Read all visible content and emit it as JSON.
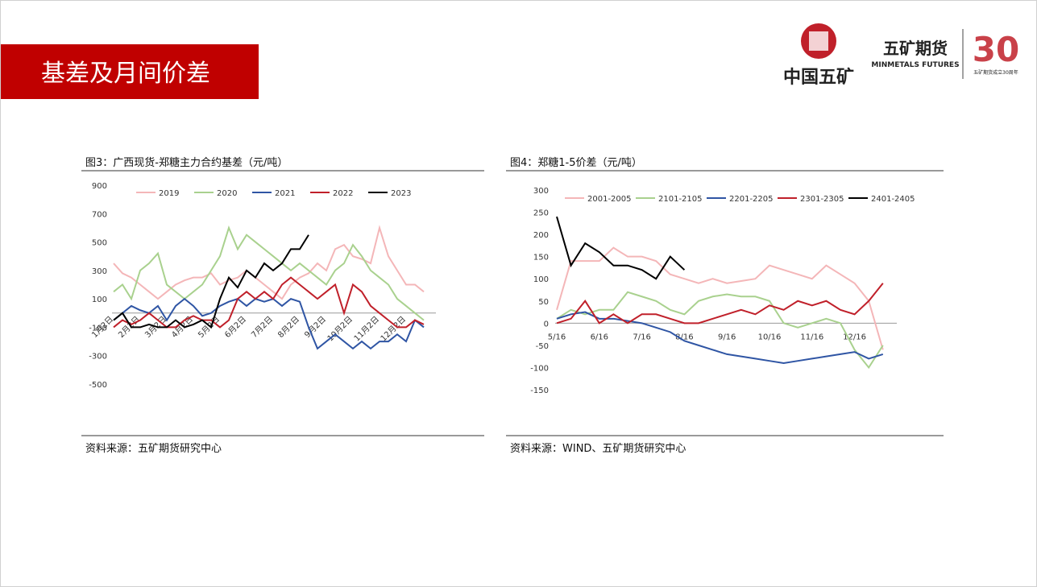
{
  "header": {
    "title": "基差及月间价差",
    "logo_left": "中国五矿",
    "logo_right": "五矿期货",
    "logo_right_en": "MINMETALS FUTURES",
    "anniversary": "五矿期货成立30周年"
  },
  "sources": [
    "资料来源：五矿期货研究中心",
    "资料来源：WIND、五矿期货研究中心"
  ],
  "chart_data": [
    {
      "type": "line",
      "title": "图3：广西现货-郑糖主力合约基差（元/吨）",
      "categories": [
        "1月2日",
        null,
        null,
        "2月2日",
        null,
        null,
        "3月2日",
        null,
        null,
        "4月2日",
        null,
        null,
        "5月2日",
        null,
        null,
        "6月2日",
        null,
        null,
        "7月2日",
        null,
        null,
        "8月2日",
        null,
        null,
        "9月2日",
        null,
        null,
        "10月2日",
        null,
        null,
        "11月2日",
        null,
        null,
        "12月2日",
        null,
        null
      ],
      "ylim": [
        -500,
        900
      ],
      "yticks": [
        -500,
        -300,
        -100,
        100,
        300,
        500,
        700,
        900
      ],
      "legend": "top",
      "series": [
        {
          "name": "2019",
          "color": "#f4b6b8",
          "values": [
            350,
            280,
            250,
            200,
            150,
            100,
            150,
            200,
            230,
            250,
            250,
            280,
            200,
            230,
            250,
            300,
            250,
            200,
            150,
            100,
            200,
            250,
            280,
            350,
            300,
            450,
            480,
            400,
            380,
            350,
            600,
            400,
            300,
            200,
            200,
            150
          ]
        },
        {
          "name": "2020",
          "color": "#a9d18e",
          "values": [
            150,
            200,
            100,
            300,
            350,
            420,
            200,
            150,
            100,
            150,
            200,
            300,
            400,
            600,
            450,
            550,
            500,
            450,
            400,
            350,
            300,
            350,
            300,
            250,
            200,
            300,
            350,
            480,
            400,
            300,
            250,
            200,
            100,
            50,
            0,
            -50
          ]
        },
        {
          "name": "2021",
          "color": "#2f55a4",
          "values": [
            -50,
            0,
            50,
            20,
            0,
            50,
            -50,
            50,
            100,
            50,
            -20,
            0,
            50,
            80,
            100,
            50,
            100,
            80,
            100,
            50,
            100,
            80,
            -100,
            -250,
            -200,
            -150,
            -200,
            -250,
            -200,
            -250,
            -200,
            -200,
            -150,
            -200,
            -50,
            -100
          ]
        },
        {
          "name": "2022",
          "color": "#c0202a",
          "values": [
            -100,
            -50,
            -80,
            -50,
            0,
            -50,
            -100,
            -100,
            -50,
            -20,
            -50,
            -50,
            -100,
            -50,
            100,
            150,
            100,
            150,
            100,
            200,
            250,
            200,
            150,
            100,
            150,
            200,
            0,
            200,
            150,
            50,
            0,
            -50,
            -100,
            -100,
            -50,
            -80
          ]
        },
        {
          "name": "2023",
          "color": "#000000",
          "values": [
            -50,
            0,
            -100,
            -100,
            -80,
            -100,
            -100,
            -50,
            -100,
            -80,
            -50,
            -100,
            100,
            250,
            180,
            300,
            250,
            350,
            300,
            350,
            450,
            450,
            550,
            null,
            null,
            null,
            null,
            null,
            null,
            null,
            null,
            null,
            null,
            null,
            null,
            null
          ]
        }
      ]
    },
    {
      "type": "line",
      "title": "图4：郑糖1-5价差（元/吨）",
      "categories": [
        "5/16",
        null,
        null,
        "6/16",
        null,
        null,
        "7/16",
        null,
        null,
        "8/16",
        null,
        null,
        "9/16",
        null,
        null,
        "10/16",
        null,
        null,
        "11/16",
        null,
        null,
        "12/16",
        null,
        null
      ],
      "ylim": [
        -150,
        300
      ],
      "yticks": [
        -150,
        -100,
        -50,
        0,
        50,
        100,
        150,
        200,
        250,
        300
      ],
      "legend": "top",
      "series": [
        {
          "name": "2001-2005",
          "color": "#f4b6b8",
          "values": [
            30,
            140,
            140,
            140,
            170,
            150,
            150,
            140,
            110,
            100,
            90,
            100,
            90,
            95,
            100,
            130,
            120,
            110,
            100,
            130,
            110,
            90,
            50,
            -60
          ]
        },
        {
          "name": "2101-2105",
          "color": "#a9d18e",
          "values": [
            10,
            30,
            20,
            30,
            30,
            70,
            60,
            50,
            30,
            20,
            50,
            60,
            65,
            60,
            60,
            50,
            0,
            -10,
            0,
            10,
            0,
            -60,
            -100,
            -50
          ]
        },
        {
          "name": "2201-2205",
          "color": "#2f55a4",
          "values": [
            10,
            20,
            25,
            10,
            10,
            5,
            0,
            -10,
            -20,
            -40,
            -50,
            -60,
            -70,
            -75,
            -80,
            -85,
            -90,
            -85,
            -80,
            -75,
            -70,
            -65,
            -80,
            -70
          ]
        },
        {
          "name": "2301-2305",
          "color": "#c0202a",
          "values": [
            0,
            10,
            50,
            0,
            20,
            0,
            20,
            20,
            10,
            0,
            0,
            10,
            20,
            30,
            20,
            40,
            30,
            50,
            40,
            50,
            30,
            20,
            50,
            90
          ]
        },
        {
          "name": "2401-2405",
          "color": "#000000",
          "values": [
            240,
            130,
            180,
            160,
            130,
            130,
            120,
            100,
            150,
            120,
            null,
            null,
            null,
            null,
            null,
            null,
            null,
            null,
            null,
            null,
            null,
            null,
            null,
            null
          ]
        }
      ]
    }
  ]
}
